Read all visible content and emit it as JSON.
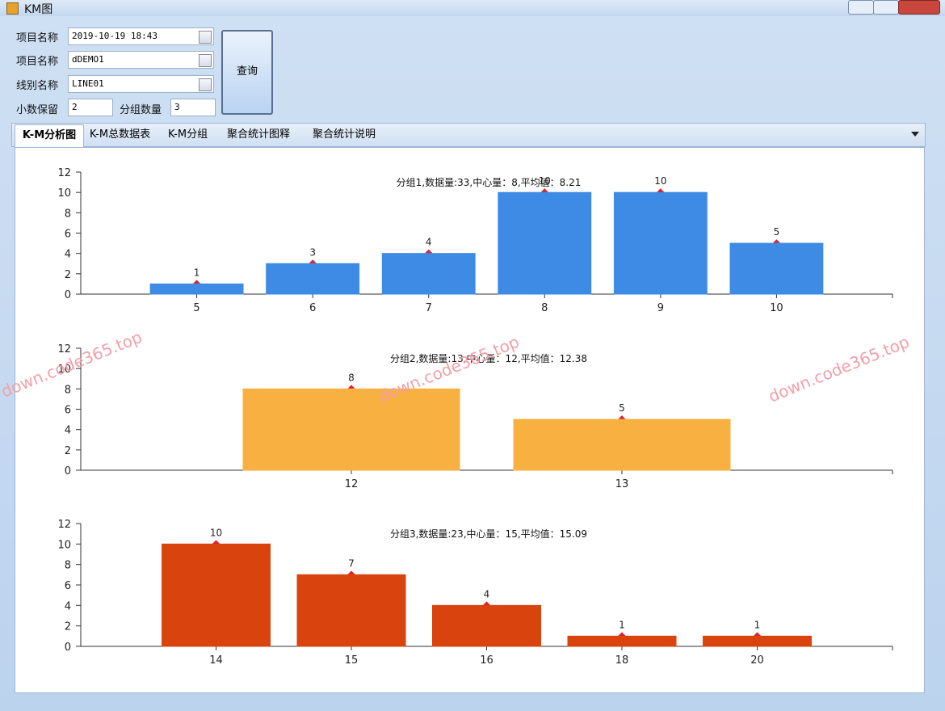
{
  "window": {
    "title": "KM图"
  },
  "form": {
    "date_label": "项目名称",
    "date_value": "2019-10-19 18:43",
    "project_label": "项目名称",
    "project_value": "dDEMO1",
    "line_label": "线别名称",
    "line_value": "LINE01",
    "decimals_label": "小数保留",
    "decimals_value": "2",
    "groups_label": "分组数量",
    "groups_value": "3",
    "query_button": "查询"
  },
  "tabs": [
    "K-M分析图",
    "K-M总数据表",
    "K-M分组",
    "聚合统计图释",
    "聚合统计说明"
  ],
  "watermark": "down.code365.top",
  "chart_data": [
    {
      "type": "bar",
      "title": "分组1,数据量:33,中心量：8,平均值：8.21",
      "categories": [
        "5",
        "6",
        "7",
        "8",
        "9",
        "10"
      ],
      "values": [
        1,
        3,
        4,
        10,
        10,
        5
      ],
      "color": "#3d8be4",
      "marker_color": "#d8262e",
      "ylim": [
        0,
        12
      ],
      "yticks": [
        0,
        2,
        4,
        6,
        8,
        10,
        12
      ]
    },
    {
      "type": "bar",
      "title": "分组2,数据量:13,中心量：12,平均值：12.38",
      "categories": [
        "12",
        "13"
      ],
      "values": [
        8,
        5
      ],
      "color": "#f8b040",
      "marker_color": "#d8262e",
      "ylim": [
        0,
        12
      ],
      "yticks": [
        0,
        2,
        4,
        6,
        8,
        10,
        12
      ]
    },
    {
      "type": "bar",
      "title": "分组3,数据量:23,中心量：15,平均值：15.09",
      "categories": [
        "14",
        "15",
        "16",
        "18",
        "20"
      ],
      "values": [
        10,
        7,
        4,
        1,
        1
      ],
      "color": "#d9430d",
      "marker_color": "#d8262e",
      "ylim": [
        0,
        12
      ],
      "yticks": [
        0,
        2,
        4,
        6,
        8,
        10,
        12
      ]
    }
  ]
}
